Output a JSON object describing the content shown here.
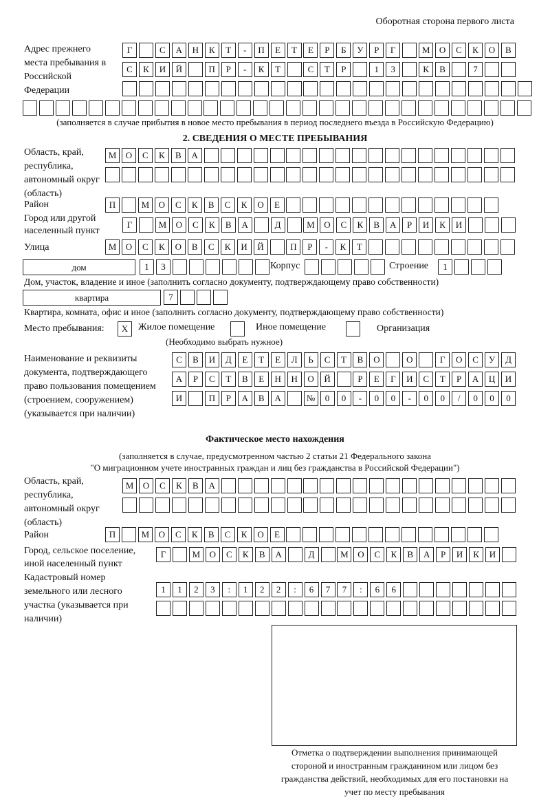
{
  "header": {
    "side_note": "Оборотная сторона первого листа"
  },
  "previous_address": {
    "label": "Адрес прежнего места пребывания в Российской Федерации",
    "rows": [
      [
        "Г",
        " ",
        "С",
        "А",
        "Н",
        "К",
        "Т",
        "-",
        "П",
        "Е",
        "Т",
        "Е",
        "Р",
        "Б",
        "У",
        "Р",
        "Г",
        " ",
        "М",
        "О",
        "С",
        "К",
        "О",
        "В"
      ],
      [
        "С",
        "К",
        "И",
        "Й",
        " ",
        "П",
        "Р",
        "-",
        "К",
        "Т",
        " ",
        "С",
        "Т",
        "Р",
        " ",
        "1",
        "3",
        " ",
        "К",
        "В",
        " ",
        "7",
        " ",
        " "
      ],
      [
        " ",
        " ",
        " ",
        " ",
        " ",
        " ",
        " ",
        " ",
        " ",
        " ",
        " ",
        " ",
        " ",
        " ",
        " ",
        " ",
        " ",
        " ",
        " ",
        " ",
        " ",
        " ",
        " ",
        " ",
        " "
      ],
      [
        " ",
        " ",
        " ",
        " ",
        " ",
        " ",
        " ",
        " ",
        " ",
        " ",
        " ",
        " ",
        " ",
        " ",
        " ",
        " ",
        " ",
        " ",
        " ",
        " ",
        " ",
        " ",
        " ",
        " ",
        " ",
        " ",
        " ",
        " ",
        " ",
        " ",
        " "
      ]
    ],
    "note": "(заполняется в случае прибытия в новое место пребывания в период последнего въезда в Российскую Федерацию)"
  },
  "section2": {
    "title": "2. СВЕДЕНИЯ О МЕСТЕ ПРЕБЫВАНИЯ",
    "region_label": "Область, край, республика, автономный округ (область)",
    "region_rows": [
      [
        "М",
        "О",
        "С",
        "К",
        "В",
        "А",
        " ",
        " ",
        " ",
        " ",
        " ",
        " ",
        " ",
        " ",
        " ",
        " ",
        " ",
        " ",
        " ",
        " ",
        " ",
        " ",
        " ",
        " ",
        " "
      ],
      [
        " ",
        " ",
        " ",
        " ",
        " ",
        " ",
        " ",
        " ",
        " ",
        " ",
        " ",
        " ",
        " ",
        " ",
        " ",
        " ",
        " ",
        " ",
        " ",
        " ",
        " ",
        " ",
        " ",
        " ",
        " "
      ]
    ],
    "district_label": "Район",
    "district": [
      "П",
      " ",
      "М",
      "О",
      "С",
      "К",
      "В",
      "С",
      "К",
      "О",
      "Е",
      " ",
      " ",
      " ",
      " ",
      " ",
      " ",
      " ",
      " ",
      " ",
      " ",
      " ",
      " ",
      " "
    ],
    "city_label": "Город или другой населенный пункт",
    "city": [
      "Г",
      " ",
      "М",
      "О",
      "С",
      "К",
      "В",
      "А",
      " ",
      "Д",
      " ",
      "М",
      "О",
      "С",
      "К",
      "В",
      "А",
      "Р",
      "И",
      "К",
      "И",
      " ",
      " ",
      " "
    ],
    "street_label": "Улица",
    "street": [
      "М",
      "О",
      "С",
      "К",
      "О",
      "В",
      "С",
      "К",
      "И",
      "Й",
      " ",
      "П",
      "Р",
      "-",
      "К",
      "Т",
      " ",
      " ",
      " ",
      " ",
      " ",
      " ",
      " ",
      " ",
      " "
    ],
    "house_type": "дом",
    "house": [
      "1",
      "3",
      " ",
      " ",
      " ",
      " ",
      " ",
      " "
    ],
    "korpus_label": "Корпус",
    "korpus": [
      " ",
      " ",
      " ",
      " ",
      " "
    ],
    "building_label": "Строение",
    "building": [
      "1",
      " ",
      " ",
      " "
    ],
    "house_note": "Дом, участок, владение и иное (заполнить согласно документу, подтверждающему право собственности)",
    "flat_type": "квартира",
    "flat": [
      "7",
      " ",
      " ",
      " "
    ],
    "flat_note": "Квартира, комната, офис и иное (заполнить согласно документу, подтверждающему право собственности)",
    "stay_label": "Место пребывания:",
    "stay_options": [
      {
        "label": "Жилое помещение",
        "mark": "X"
      },
      {
        "label": "Иное помещение",
        "mark": ""
      },
      {
        "label": "Организация",
        "mark": ""
      }
    ],
    "stay_note": "(Необходимо выбрать нужное)",
    "doc_label": "Наименование и реквизиты документа, подтверждающего право пользования помещением (строением, сооружением) (указывается при наличии)",
    "doc_rows": [
      [
        "С",
        "В",
        "И",
        "Д",
        "Е",
        "Т",
        "Е",
        "Л",
        "Ь",
        "С",
        "Т",
        "В",
        "О",
        " ",
        "О",
        " ",
        "Г",
        "О",
        "С",
        "У",
        "Д"
      ],
      [
        "А",
        "Р",
        "С",
        "Т",
        "В",
        "Е",
        "Н",
        "Н",
        "О",
        "Й",
        " ",
        "Р",
        "Е",
        "Г",
        "И",
        "С",
        "Т",
        "Р",
        "А",
        "Ц",
        "И"
      ],
      [
        "И",
        " ",
        "П",
        "Р",
        "А",
        "В",
        "А",
        " ",
        "№",
        "0",
        "0",
        "-",
        "0",
        "0",
        "-",
        "0",
        "0",
        "/",
        "0",
        "0",
        "0"
      ]
    ]
  },
  "actual": {
    "title": "Фактическое место нахождения",
    "note1": "(заполняется в случае, предусмотренном частью 2 статьи 21 Федерального закона",
    "note2": "\"О миграционном учете иностранных граждан и лиц без гражданства в Российской Федерации\")",
    "region_label": "Область, край, республика, автономный округ (область)",
    "region_rows": [
      [
        "М",
        "О",
        "С",
        "К",
        "В",
        "А",
        " ",
        " ",
        " ",
        " ",
        " ",
        " ",
        " ",
        " ",
        " ",
        " ",
        " ",
        " ",
        " ",
        " ",
        " ",
        " ",
        " ",
        " "
      ],
      [
        " ",
        " ",
        " ",
        " ",
        " ",
        " ",
        " ",
        " ",
        " ",
        " ",
        " ",
        " ",
        " ",
        " ",
        " ",
        " ",
        " ",
        " ",
        " ",
        " ",
        " ",
        " ",
        " ",
        " "
      ]
    ],
    "district_label": "Район",
    "district": [
      "П",
      " ",
      "М",
      "О",
      "С",
      "К",
      "В",
      "С",
      "К",
      "О",
      "Е",
      " ",
      " ",
      " ",
      " ",
      " ",
      " ",
      " ",
      " ",
      " ",
      " ",
      " ",
      " ",
      " "
    ],
    "city_label": "Город, сельское поселение, иной населенный пункт",
    "city": [
      "Г",
      " ",
      "М",
      "О",
      "С",
      "К",
      "В",
      "А",
      " ",
      "Д",
      " ",
      "М",
      "О",
      "С",
      "К",
      "В",
      "А",
      "Р",
      "И",
      "К",
      "И",
      " "
    ],
    "cadastral_label": "Кадастровый номер земельного или лесного участка (указывается при наличии)",
    "cadastral_rows": [
      [
        "1",
        "1",
        "2",
        "3",
        ":",
        "1",
        "2",
        "2",
        ":",
        "6",
        "7",
        "7",
        ":",
        "6",
        "6",
        " ",
        " ",
        " ",
        " ",
        " ",
        " ",
        " "
      ],
      [
        " ",
        " ",
        " ",
        " ",
        " ",
        " ",
        " ",
        " ",
        " ",
        " ",
        " ",
        " ",
        " ",
        " ",
        " ",
        " ",
        " ",
        " ",
        " ",
        " ",
        " ",
        " "
      ]
    ],
    "stamp_caption": "Отметка о подтверждении выполнения принимающей стороной и иностранным гражданином или лицом без гражданства действий, необходимых для его постановки на учет по месту пребывания"
  }
}
